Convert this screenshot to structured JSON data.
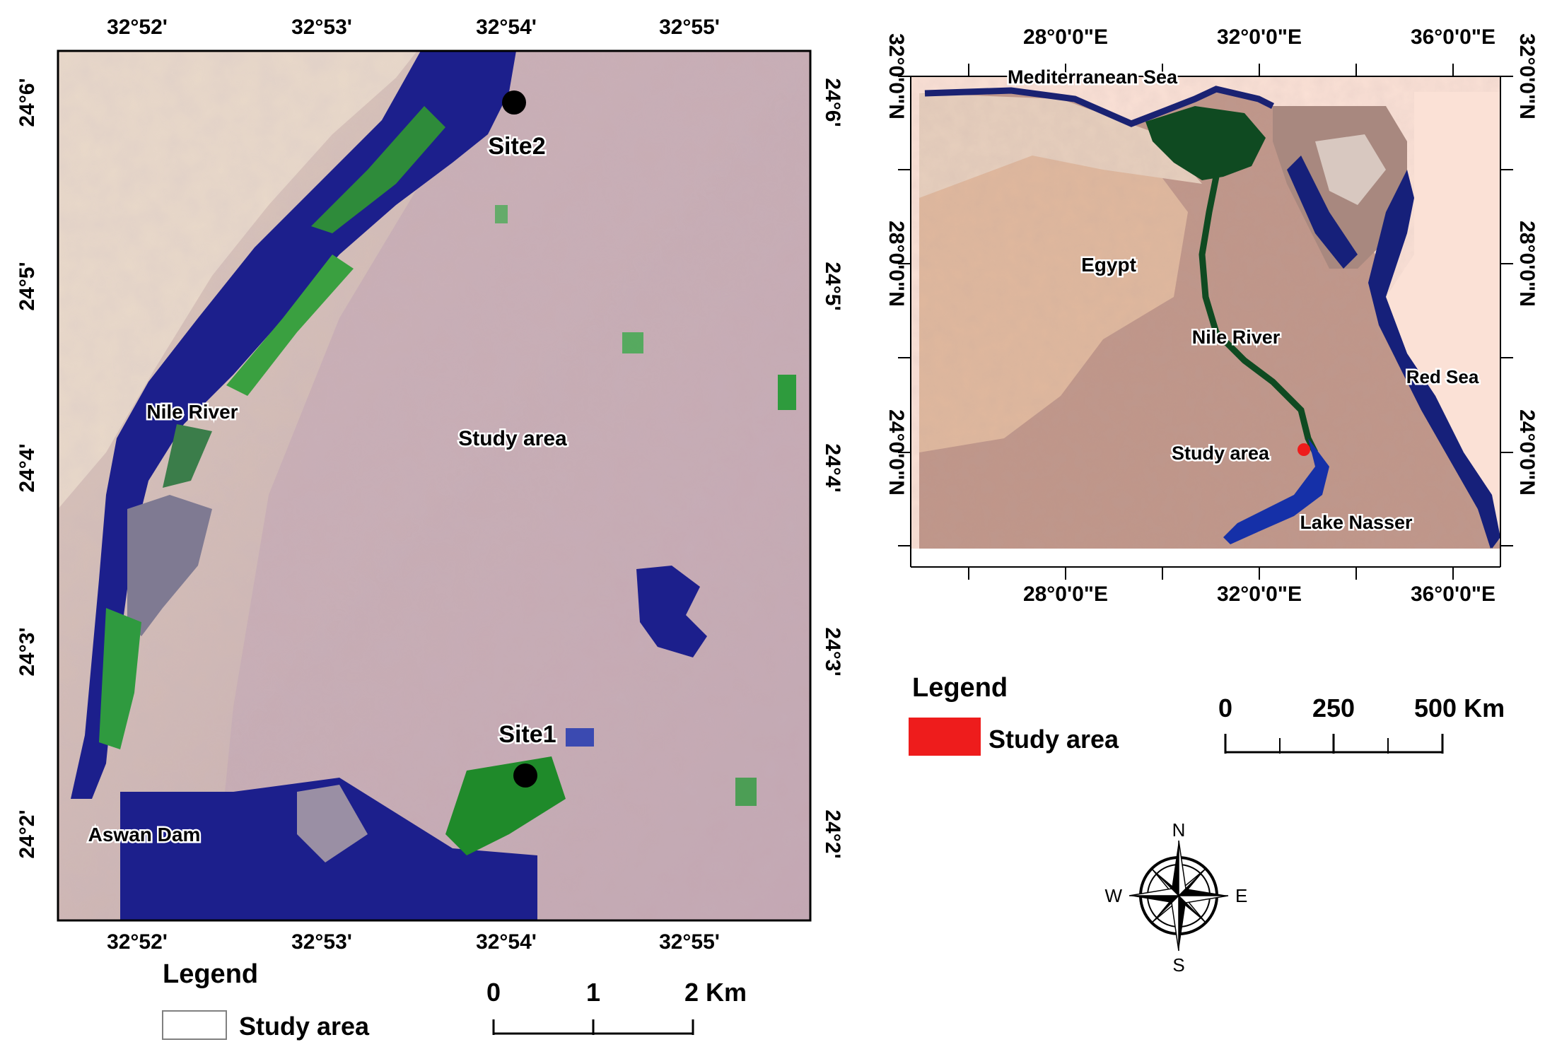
{
  "left_map": {
    "top_lon_ticks": [
      "32°52'",
      "32°53'",
      "32°54'",
      "32°55'"
    ],
    "bottom_lon_ticks": [
      "32°52'",
      "32°53'",
      "32°54'",
      "32°55'"
    ],
    "lat_ticks": [
      "24°6'",
      "24°5'",
      "24°4'",
      "24°3'",
      "24°2'"
    ],
    "labels": {
      "site2": "Site2",
      "site1": "Site1",
      "nile_river": "Nile River",
      "study_area": "Study area",
      "aswan_dam": "Aswan Dam"
    },
    "legend": {
      "title": "Legend",
      "item": "Study area",
      "swatch_color": "#ffffff"
    },
    "scale": {
      "labels": [
        "0",
        "1",
        "2 Km"
      ]
    },
    "marker_color": "#000000"
  },
  "right_map": {
    "top_lon_ticks": [
      "28°0'0\"E",
      "32°0'0\"E",
      "36°0'0\"E"
    ],
    "bottom_lon_ticks": [
      "28°0'0\"E",
      "32°0'0\"E",
      "36°0'0\"E"
    ],
    "lat_ticks": [
      "32°0'0\"N",
      "28°0'0\"N",
      "24°0'0\"N"
    ],
    "labels": {
      "mediterranean": "Mediterranean Sea",
      "egypt": "Egypt",
      "nile_river": "Nile River",
      "red_sea": "Red Sea",
      "study_area": "Study area",
      "lake_nasser": "Lake Nasser"
    },
    "legend": {
      "title": "Legend",
      "item": "Study area",
      "swatch_color": "#ee1c1c"
    },
    "scale": {
      "labels": [
        "0",
        "250",
        "500 Km"
      ]
    },
    "marker_color": "#ee1c1c"
  },
  "compass": {
    "n": "N",
    "s": "S",
    "e": "E",
    "w": "W"
  }
}
